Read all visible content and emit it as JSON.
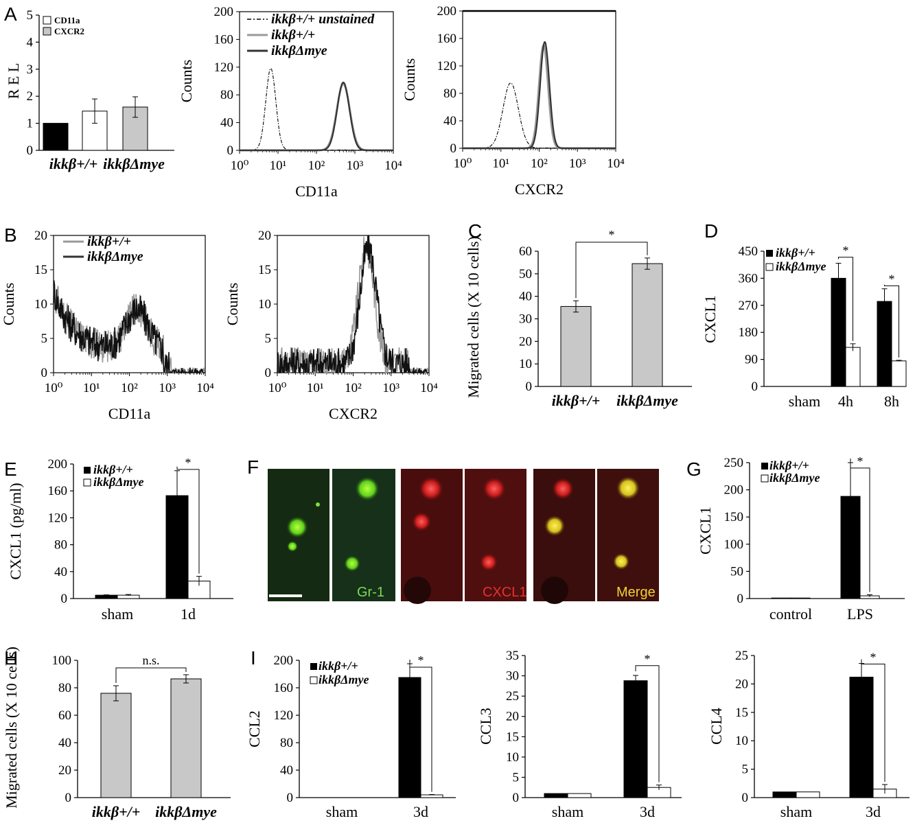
{
  "panel_letters": [
    "A",
    "B",
    "C",
    "D",
    "E",
    "F",
    "G",
    "H",
    "I"
  ],
  "legend": {
    "wt": "ikkβ+/+",
    "ko": "ikkβΔmye",
    "unstained": "ikkβ+/+ unstained",
    "cd11a": "CD11a",
    "cxcr2": "CXCR2"
  },
  "colors": {
    "wt": "#000000",
    "ko": "#ffffff",
    "grey": "#c8c8c8",
    "hist_wt": "#999999",
    "hist_ko": "#333333"
  },
  "micro_labels": [
    "Gr-1",
    "CXCL1",
    "Merge"
  ],
  "chart_data": [
    {
      "id": "A_bar",
      "type": "bar",
      "ylabel": "R E L",
      "ylim": [
        0,
        5
      ],
      "yticks": [
        0,
        1,
        2,
        3,
        4,
        5
      ],
      "categories": [
        "ikkβ+/+",
        "ikkβΔmye"
      ],
      "legend": [
        "CD11a",
        "CXCR2"
      ],
      "bars": [
        {
          "label": "ikkβ+/+",
          "value": 1.0,
          "err": 0,
          "color": "#000000"
        },
        {
          "label": "CD11a",
          "value": 1.45,
          "err": 0.45,
          "color": "#ffffff"
        },
        {
          "label": "CXCR2",
          "value": 1.6,
          "err": 0.38,
          "color": "#c8c8c8"
        }
      ]
    },
    {
      "id": "A_hist_cd11a",
      "type": "line",
      "xlabel": "CD11a",
      "ylabel": "Counts",
      "xscale": "log",
      "xticks": [
        "10⁰",
        "10¹",
        "10²",
        "10³",
        "10⁴"
      ],
      "ylim": [
        0,
        200
      ],
      "yticks": [
        0,
        40,
        80,
        120,
        160,
        200
      ],
      "series": [
        {
          "name": "ikkβ+/+ unstained",
          "peak_x": 6.5,
          "peak_y": 118,
          "width": 0.13,
          "style": "dashdot"
        },
        {
          "name": "ikkβ+/+",
          "peak_x": 500,
          "peak_y": 96,
          "width": 0.17,
          "style": "grey"
        },
        {
          "name": "ikkβΔmye",
          "peak_x": 500,
          "peak_y": 98,
          "width": 0.16,
          "style": "dark"
        }
      ]
    },
    {
      "id": "A_hist_cxcr2",
      "type": "line",
      "xlabel": "CXCR2",
      "ylabel": "Counts",
      "xscale": "log",
      "xticks": [
        "10⁰",
        "10¹",
        "10²",
        "10³",
        "10⁴"
      ],
      "ylim": [
        0,
        200
      ],
      "yticks": [
        0,
        40,
        80,
        120,
        160,
        200
      ],
      "series": [
        {
          "name": "ikkβ+/+ unstained",
          "peak_x": 18,
          "peak_y": 95,
          "width": 0.2,
          "style": "dashdot"
        },
        {
          "name": "ikkβ+/+",
          "peak_x": 130,
          "peak_y": 150,
          "width": 0.12,
          "style": "grey"
        },
        {
          "name": "ikkβΔmye",
          "peak_x": 140,
          "peak_y": 155,
          "width": 0.12,
          "style": "dark"
        }
      ]
    },
    {
      "id": "B_hist_cd11a",
      "type": "line",
      "xlabel": "CD11a",
      "ylabel": "Counts",
      "xscale": "log",
      "xticks": [
        "10⁰",
        "10¹",
        "10²",
        "10³",
        "10⁴"
      ],
      "ylim": [
        0,
        20
      ],
      "yticks": [
        0,
        5,
        10,
        15,
        20
      ],
      "series": [
        {
          "name": "ikkβ+/+"
        },
        {
          "name": "ikkβΔmye"
        }
      ]
    },
    {
      "id": "B_hist_cxcr2",
      "type": "line",
      "xlabel": "CXCR2",
      "ylabel": "Counts",
      "xscale": "log",
      "xticks": [
        "10⁰",
        "10¹",
        "10²",
        "10³",
        "10⁴"
      ],
      "ylim": [
        0,
        20
      ],
      "yticks": [
        0,
        5,
        10,
        15,
        20
      ],
      "series": [
        {
          "name": "ikkβ+/+"
        },
        {
          "name": "ikkβΔmye"
        }
      ]
    },
    {
      "id": "C",
      "type": "bar",
      "ylabel": "Migrated cells (X 10 cells)",
      "ylim": [
        0,
        60
      ],
      "yticks": [
        0,
        10,
        20,
        30,
        40,
        50,
        60
      ],
      "categories": [
        "ikkβ+/+",
        "ikkβΔmye"
      ],
      "values": [
        35.5,
        54.5
      ],
      "errors": [
        2.5,
        2.5
      ],
      "significance": "*"
    },
    {
      "id": "D",
      "type": "bar",
      "ylabel": "CXCL1",
      "ylim": [
        0,
        450
      ],
      "yticks": [
        0,
        90,
        180,
        270,
        360,
        450
      ],
      "categories": [
        "sham",
        "4h",
        "8h"
      ],
      "series": [
        {
          "name": "ikkβ+/+",
          "values": [
            0,
            360,
            283
          ],
          "errors": [
            0,
            50,
            42
          ]
        },
        {
          "name": "ikkβΔmye",
          "values": [
            0,
            130,
            85
          ],
          "errors": [
            0,
            12,
            2
          ]
        }
      ],
      "significance": "*"
    },
    {
      "id": "E",
      "type": "bar",
      "ylabel": "CXCL1 (pg/ml)",
      "ylim": [
        0,
        200
      ],
      "yticks": [
        0,
        40,
        80,
        120,
        160,
        200
      ],
      "categories": [
        "sham",
        "1d"
      ],
      "series": [
        {
          "name": "ikkβ+/+",
          "values": [
            5,
            153
          ],
          "errors": [
            0.5,
            37
          ]
        },
        {
          "name": "ikkβΔmye",
          "values": [
            5,
            26
          ],
          "errors": [
            1,
            7
          ]
        }
      ],
      "significance": "*"
    },
    {
      "id": "G",
      "type": "bar",
      "ylabel": "CXCL1",
      "ylim": [
        0,
        250
      ],
      "yticks": [
        0,
        50,
        100,
        150,
        200,
        250
      ],
      "categories": [
        "control",
        "LPS"
      ],
      "series": [
        {
          "name": "ikkβ+/+",
          "values": [
            1,
            188
          ],
          "errors": [
            0,
            62
          ]
        },
        {
          "name": "ikkβΔmye",
          "values": [
            1,
            5
          ],
          "errors": [
            0,
            2
          ]
        }
      ],
      "significance": "*"
    },
    {
      "id": "H",
      "type": "bar",
      "ylabel": "Migrated cells (X 10 cells)",
      "ylim": [
        0,
        100
      ],
      "yticks": [
        0,
        20,
        40,
        60,
        80,
        100
      ],
      "categories": [
        "ikkβ+/+",
        "ikkβΔmye"
      ],
      "values": [
        76,
        86.5
      ],
      "errors": [
        5.5,
        3
      ],
      "significance": "n.s."
    },
    {
      "id": "I_ccl2",
      "type": "bar",
      "ylabel": "CCL2",
      "ylim": [
        0,
        200
      ],
      "yticks": [
        0,
        40,
        80,
        120,
        160,
        200
      ],
      "categories": [
        "sham",
        "3d"
      ],
      "series": [
        {
          "name": "ikkβ+/+",
          "values": [
            0,
            175
          ],
          "errors": [
            0,
            20
          ]
        },
        {
          "name": "ikkβΔmye",
          "values": [
            0,
            4
          ],
          "errors": [
            0,
            0.5
          ]
        }
      ],
      "significance": "*"
    },
    {
      "id": "I_ccl3",
      "type": "bar",
      "ylabel": "CCL3",
      "ylim": [
        0,
        35
      ],
      "yticks": [
        0,
        5,
        10,
        15,
        20,
        25,
        30,
        35
      ],
      "categories": [
        "sham",
        "3d"
      ],
      "series": [
        {
          "name": "ikkβ+/+",
          "values": [
            1,
            28.8
          ],
          "errors": [
            0,
            1.3
          ]
        },
        {
          "name": "ikkβΔmye",
          "values": [
            1,
            2.5
          ],
          "errors": [
            0,
            0.6
          ]
        }
      ],
      "significance": "*"
    },
    {
      "id": "I_ccl4",
      "type": "bar",
      "ylabel": "CCL4",
      "ylim": [
        0,
        25
      ],
      "yticks": [
        0,
        5,
        10,
        15,
        20,
        25
      ],
      "categories": [
        "sham",
        "3d"
      ],
      "series": [
        {
          "name": "ikkβ+/+",
          "values": [
            1,
            21.2
          ],
          "errors": [
            0,
            2.4
          ]
        },
        {
          "name": "ikkβΔmye",
          "values": [
            1,
            1.5
          ],
          "errors": [
            0,
            0.8
          ]
        }
      ],
      "significance": "*"
    }
  ]
}
